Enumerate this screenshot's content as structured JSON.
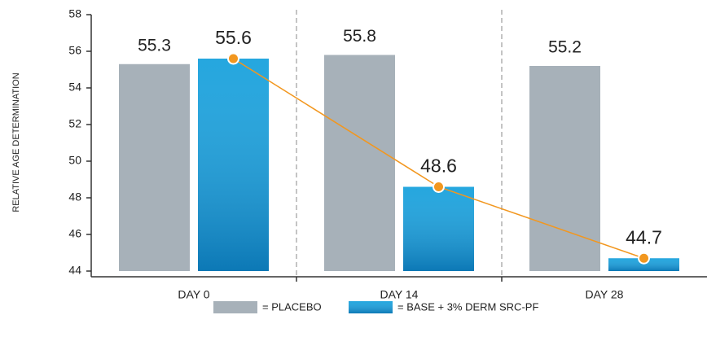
{
  "chart_data": {
    "type": "bar",
    "y_label": "RELATIVE AGE DETERMINATION",
    "categories": [
      "DAY 0",
      "DAY 14",
      "DAY 28"
    ],
    "series": [
      {
        "name": "= PLACEBO",
        "color": "#a7b1b9",
        "label_color": "#a7b1b9",
        "values": [
          55.3,
          55.8,
          55.2
        ]
      },
      {
        "name": "= BASE + 3% DERM SRC-PF",
        "color": "#129fdc",
        "label_color": "#1673b6",
        "values": [
          55.6,
          48.6,
          44.7
        ]
      }
    ],
    "line_color": "#f2971f",
    "ylim": [
      44,
      58
    ],
    "yticks": [
      44,
      46,
      48,
      50,
      52,
      54,
      56,
      58
    ]
  }
}
